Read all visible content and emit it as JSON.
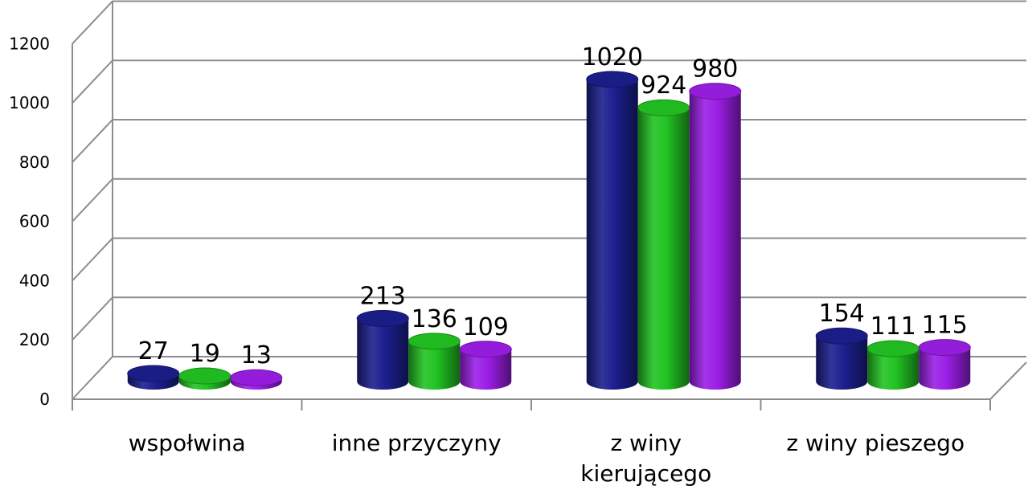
{
  "chart_data": {
    "type": "bar",
    "style": "3d-cylinder",
    "categories": [
      [
        "wspołwina"
      ],
      [
        "inne przyczyny"
      ],
      [
        "z winy",
        "kierującego"
      ],
      [
        "z winy pieszego"
      ]
    ],
    "series": [
      {
        "values": [
          27,
          213,
          1020,
          154
        ],
        "color": "#1c1f8e"
      },
      {
        "values": [
          19,
          136,
          924,
          111
        ],
        "color": "#22c322"
      },
      {
        "values": [
          13,
          109,
          980,
          115
        ],
        "color": "#9b1ee6"
      }
    ],
    "data_labels": [
      [
        "27",
        "213",
        "1020",
        "154"
      ],
      [
        "19",
        "136",
        "924",
        "111"
      ],
      [
        "13",
        "109",
        "980",
        "115"
      ]
    ],
    "y_ticks": [
      "0",
      "200",
      "400",
      "600",
      "800",
      "1000",
      "1200"
    ],
    "ylim": [
      0,
      1200
    ],
    "grid": true,
    "legend": "none",
    "title": "",
    "xlabel": "",
    "ylabel": ""
  }
}
